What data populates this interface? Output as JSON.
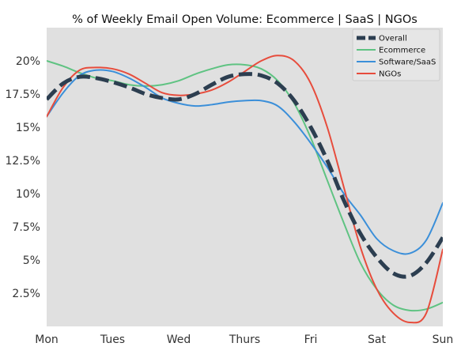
{
  "chart_data": {
    "type": "line",
    "title": "% of Weekly Email Open Volume: Ecommerce | SaaS | NGOs",
    "xlabel": "",
    "ylabel": "",
    "categories": [
      "Mon",
      "Tues",
      "Wed",
      "Thurs",
      "Fri",
      "Sat",
      "Sun"
    ],
    "x": [
      0,
      0.25,
      0.5,
      0.75,
      1.0,
      1.25,
      1.5,
      1.75,
      2.0,
      2.25,
      2.5,
      2.75,
      3.0,
      3.25,
      3.5,
      3.75,
      4.0,
      4.25,
      4.5,
      4.75,
      5.0,
      5.25,
      5.5,
      5.75,
      6.0
    ],
    "xlim": [
      0,
      6
    ],
    "ylim": [
      0,
      22.5
    ],
    "yticks": [
      2.5,
      5,
      7.5,
      10,
      12.5,
      15,
      17.5,
      20
    ],
    "ytick_labels": [
      "2.5%",
      "5%",
      "7.5%",
      "10%",
      "12.5%",
      "15%",
      "17.5%",
      "20%"
    ],
    "grid": false,
    "legend_position": "top-right",
    "background": "#e0e0e0",
    "series": [
      {
        "name": "Overall",
        "color": "#2c3e50",
        "style": "dashed",
        "values": [
          17.1,
          18.3,
          18.8,
          18.7,
          18.4,
          18.0,
          17.5,
          17.2,
          17.1,
          17.5,
          18.2,
          18.8,
          19.0,
          18.9,
          18.3,
          17.0,
          15.0,
          12.5,
          9.5,
          7.0,
          5.2,
          4.0,
          3.8,
          4.8,
          6.7
        ]
      },
      {
        "name": "Ecommerce",
        "color": "#5fc382",
        "style": "solid",
        "values": [
          20.0,
          19.6,
          19.1,
          18.7,
          18.5,
          18.2,
          18.1,
          18.2,
          18.5,
          19.0,
          19.4,
          19.7,
          19.7,
          19.4,
          18.5,
          16.8,
          14.2,
          11.0,
          7.8,
          4.8,
          2.8,
          1.6,
          1.2,
          1.3,
          1.8
        ]
      },
      {
        "name": "Software/SaaS",
        "color": "#3b8fd9",
        "style": "solid",
        "values": [
          15.8,
          17.6,
          18.9,
          19.3,
          19.2,
          18.7,
          18.0,
          17.2,
          16.8,
          16.6,
          16.7,
          16.9,
          17.0,
          17.0,
          16.6,
          15.4,
          13.8,
          12.0,
          10.0,
          8.4,
          6.6,
          5.7,
          5.5,
          6.5,
          9.3
        ]
      },
      {
        "name": "NGOs",
        "color": "#e74c3c",
        "style": "solid",
        "values": [
          15.8,
          18.0,
          19.3,
          19.5,
          19.4,
          19.0,
          18.3,
          17.6,
          17.4,
          17.5,
          17.8,
          18.4,
          19.2,
          20.0,
          20.4,
          20.0,
          18.3,
          15.0,
          10.5,
          6.0,
          2.8,
          1.0,
          0.3,
          1.0,
          5.8
        ]
      }
    ]
  }
}
